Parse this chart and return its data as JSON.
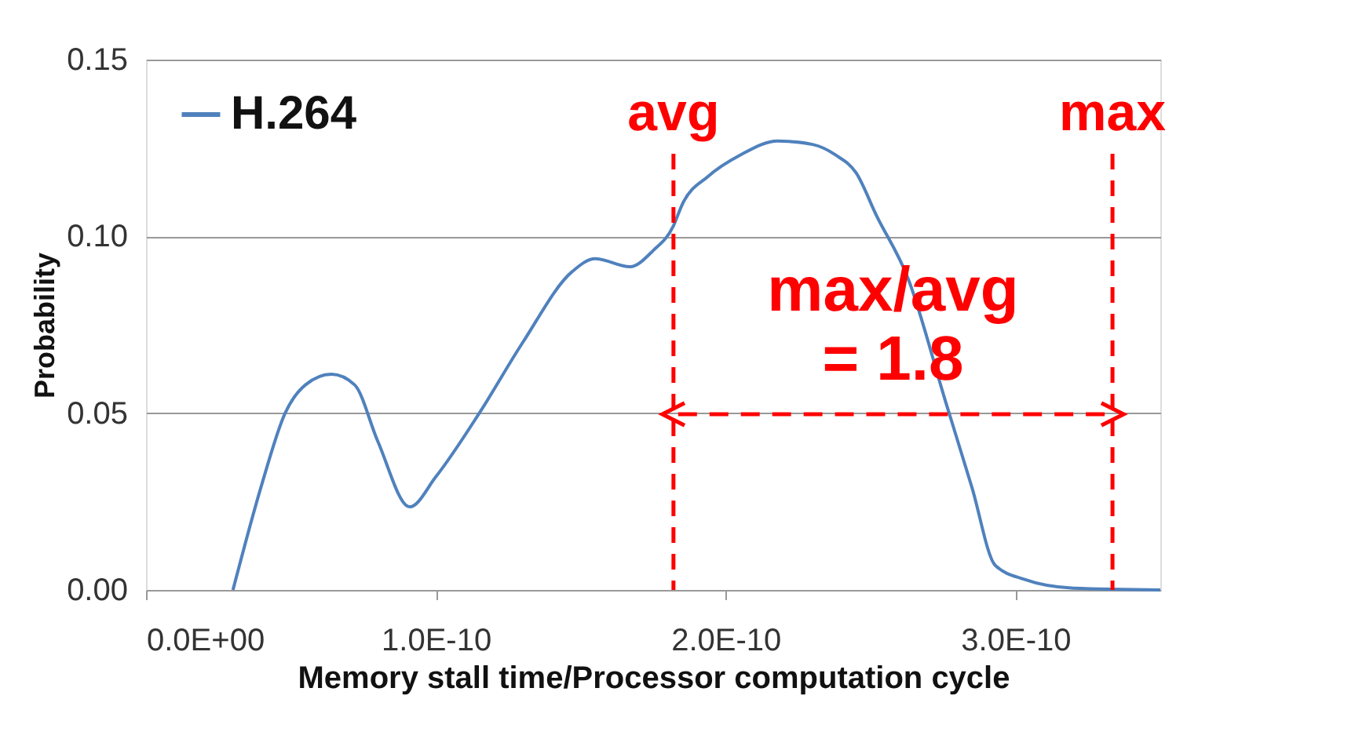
{
  "chart_data": {
    "type": "line",
    "xlabel": "Memory stall time/Processor computation cycle",
    "ylabel": "Probability",
    "x": [
      3e-11,
      4e-11,
      4.8e-11,
      5.5e-11,
      6.4e-11,
      7.2e-11,
      8e-11,
      9.1e-11,
      1e-10,
      1.15e-10,
      1.3e-10,
      1.47e-10,
      1.55e-10,
      1.67e-10,
      1.75e-10,
      1.82e-10,
      1.85e-10,
      1.94e-10,
      2.05e-10,
      2.18e-10,
      2.3e-10,
      2.38e-10,
      2.45e-10,
      2.52e-10,
      2.63e-10,
      2.76e-10,
      2.85e-10,
      2.93e-10,
      3.03e-10,
      3.2e-10,
      3.5e-10
    ],
    "series": [
      {
        "name": "H.264",
        "color": "#4f81bd",
        "values": [
          0,
          0.03,
          0.05,
          0.058,
          0.061,
          0.058,
          0.042,
          0.0235,
          0.032,
          0.05,
          0.07,
          0.09,
          0.0937,
          0.0914,
          0.096,
          0.103,
          0.109,
          0.117,
          0.123,
          0.127,
          0.126,
          0.123,
          0.118,
          0.106,
          0.088,
          0.053,
          0.029,
          0.007,
          0.003,
          0.0005,
          0
        ]
      }
    ],
    "xlim": [
      0,
      3.5e-10
    ],
    "xticks": [
      {
        "value": 0,
        "label": "0.0E+00"
      },
      {
        "value": 1e-10,
        "label": "1.0E-10"
      },
      {
        "value": 2e-10,
        "label": "2.0E-10"
      },
      {
        "value": 3e-10,
        "label": "3.0E-10"
      }
    ],
    "ylim": [
      0,
      0.15
    ],
    "yticks": [
      {
        "value": 0,
        "label": "0.00"
      },
      {
        "value": 0.05,
        "label": "0.05"
      },
      {
        "value": 0.1,
        "label": "0.10"
      },
      {
        "value": 0.15,
        "label": "0.15"
      }
    ],
    "ref_lines": [
      {
        "axis": "x",
        "value": 1.82e-10,
        "label": "avg",
        "color": "#ff0000",
        "line_style": "dashed"
      },
      {
        "axis": "x",
        "value": 3.335e-10,
        "label": "max",
        "color": "#ff0000",
        "line_style": "dashed"
      }
    ],
    "annotations": [
      "max/avg\n= 1.8"
    ],
    "grid": "y",
    "legend": "top left",
    "marker": "none",
    "line_style": "solid"
  }
}
